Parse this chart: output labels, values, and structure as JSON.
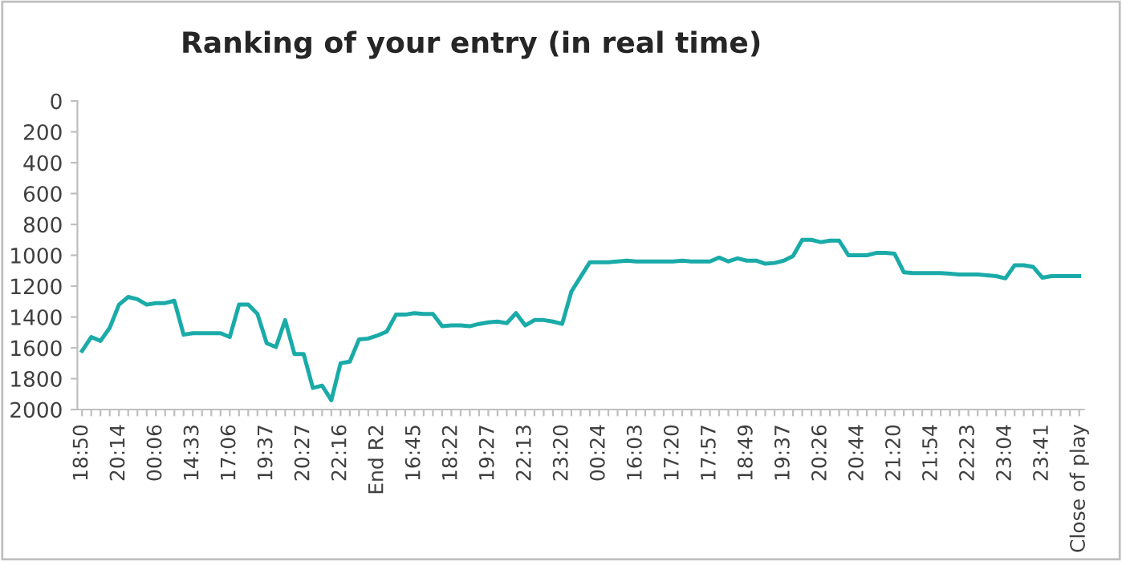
{
  "chart_data": {
    "type": "line",
    "title": "Ranking of your entry (in real time)",
    "categories": [
      "18:50",
      null,
      null,
      null,
      "20:14",
      null,
      null,
      null,
      "00:06",
      null,
      null,
      null,
      "14:33",
      null,
      null,
      null,
      "17:06",
      null,
      null,
      null,
      "19:37",
      null,
      null,
      null,
      "20:27",
      null,
      null,
      null,
      "22:16",
      null,
      null,
      null,
      "End R2",
      null,
      null,
      null,
      "16:45",
      null,
      null,
      null,
      "18:22",
      null,
      null,
      null,
      "19:27",
      null,
      null,
      null,
      "22:13",
      null,
      null,
      null,
      "23:20",
      null,
      null,
      null,
      "00:24",
      null,
      null,
      null,
      "16:03",
      null,
      null,
      null,
      "17:20",
      null,
      null,
      null,
      "17:57",
      null,
      null,
      null,
      "18:49",
      null,
      null,
      null,
      "19:37",
      null,
      null,
      null,
      "20:26",
      null,
      null,
      null,
      "20:44",
      null,
      null,
      null,
      "21:20",
      null,
      null,
      null,
      "21:54",
      null,
      null,
      null,
      "22:23",
      null,
      null,
      null,
      "23:04",
      null,
      null,
      null,
      "23:41",
      null,
      null,
      null,
      "Close of play"
    ],
    "series": [
      {
        "color": "#1aaba8",
        "values": [
          1620,
          1530,
          1555,
          1470,
          1320,
          1270,
          1285,
          1320,
          1310,
          1310,
          1295,
          1515,
          1505,
          1505,
          1505,
          1505,
          1530,
          1320,
          1320,
          1380,
          1570,
          1595,
          1420,
          1640,
          1640,
          1860,
          1845,
          1940,
          1700,
          1690,
          1545,
          1540,
          1520,
          1495,
          1385,
          1385,
          1375,
          1380,
          1380,
          1460,
          1455,
          1455,
          1460,
          1445,
          1435,
          1430,
          1440,
          1375,
          1455,
          1420,
          1420,
          1430,
          1445,
          1235,
          1140,
          1045,
          1045,
          1045,
          1040,
          1035,
          1040,
          1040,
          1040,
          1040,
          1040,
          1035,
          1040,
          1040,
          1040,
          1015,
          1040,
          1020,
          1035,
          1035,
          1055,
          1050,
          1035,
          1005,
          900,
          900,
          915,
          905,
          905,
          1000,
          1000,
          1000,
          985,
          985,
          990,
          1110,
          1115,
          1115,
          1115,
          1115,
          1120,
          1125,
          1125,
          1125,
          1130,
          1135,
          1150,
          1065,
          1065,
          1075,
          1145,
          1135,
          1135,
          1135,
          1135
        ]
      }
    ],
    "ylim": [
      2000,
      0
    ],
    "yticks": [
      0,
      200,
      400,
      600,
      800,
      1000,
      1200,
      1400,
      1600,
      1800,
      2000
    ],
    "grid": false,
    "marker": "none",
    "line_style": "solid"
  }
}
